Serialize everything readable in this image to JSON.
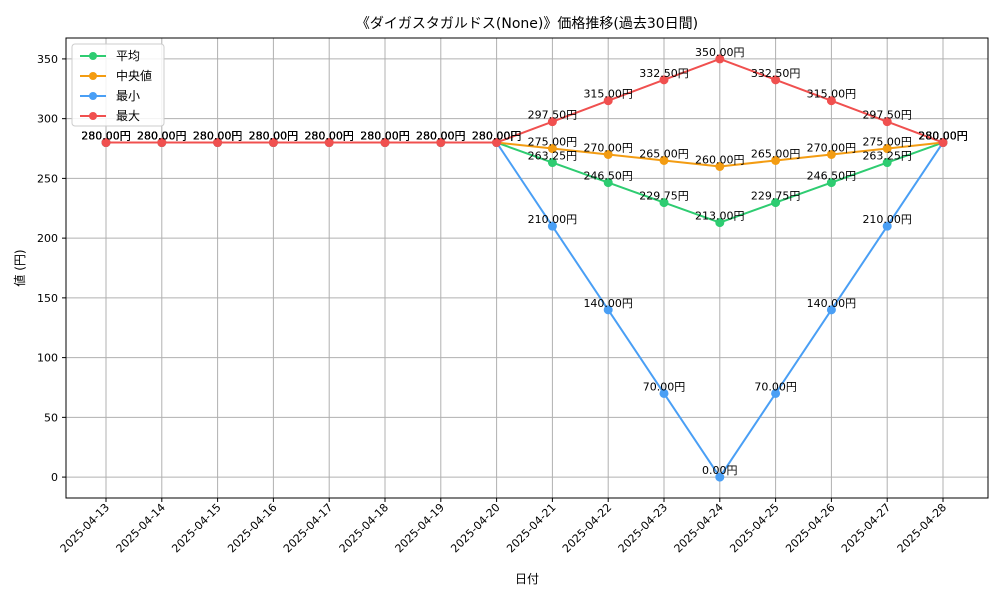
{
  "chart_data": {
    "type": "line",
    "title": "《ダイガスタガルドス(None)》価格推移(過去30日間)",
    "xlabel": "日付",
    "ylabel": "値 (円)",
    "ylim": [
      -17.5,
      367.5
    ],
    "yticks": [
      0,
      50,
      100,
      150,
      200,
      250,
      300,
      350
    ],
    "grid": true,
    "legend_position": "top-left",
    "categories": [
      "2025-04-13",
      "2025-04-14",
      "2025-04-15",
      "2025-04-16",
      "2025-04-17",
      "2025-04-18",
      "2025-04-19",
      "2025-04-20",
      "2025-04-21",
      "2025-04-22",
      "2025-04-23",
      "2025-04-24",
      "2025-04-25",
      "2025-04-26",
      "2025-04-27",
      "2025-04-28"
    ],
    "series": [
      {
        "name": "平均",
        "color": "#2ecc71",
        "values": [
          280,
          280,
          280,
          280,
          280,
          280,
          280,
          280,
          263.25,
          246.5,
          229.75,
          213,
          229.75,
          246.5,
          263.25,
          280
        ]
      },
      {
        "name": "中央値",
        "color": "#f39c12",
        "values": [
          280,
          280,
          280,
          280,
          280,
          280,
          280,
          280,
          275,
          270,
          265,
          260,
          265,
          270,
          275,
          280
        ]
      },
      {
        "name": "最小",
        "color": "#4a9ff5",
        "values": [
          280,
          280,
          280,
          280,
          280,
          280,
          280,
          280,
          210,
          140,
          70,
          0,
          70,
          140,
          210,
          280
        ]
      },
      {
        "name": "最大",
        "color": "#f0504f",
        "values": [
          280,
          280,
          280,
          280,
          280,
          280,
          280,
          280,
          297.5,
          315,
          332.5,
          350,
          332.5,
          315,
          297.5,
          280
        ]
      }
    ],
    "label_suffix": "円",
    "label_decimals": 2
  }
}
